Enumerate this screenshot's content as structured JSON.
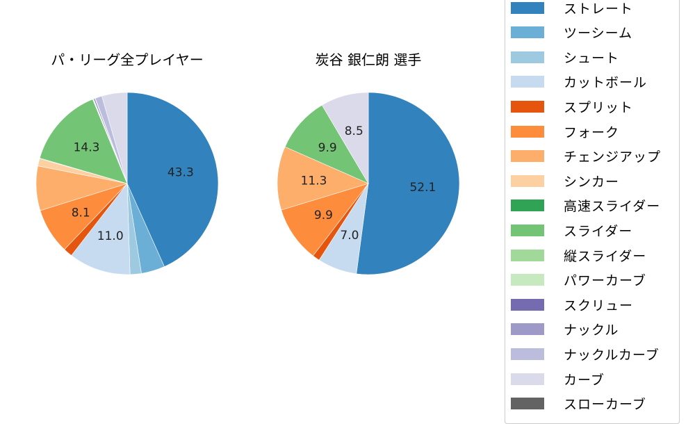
{
  "chart_data": [
    {
      "type": "pie",
      "title": "パ・リーグ全プレイヤー",
      "start_angle": "12 o'clock, clockwise",
      "categories": [
        "ストレート",
        "ツーシーム",
        "シュート",
        "カットボール",
        "スプリット",
        "フォーク",
        "チェンジアップ",
        "シンカー",
        "高速スライダー",
        "スライダー",
        "縦スライダー",
        "パワーカーブ",
        "スクリュー",
        "ナックル",
        "ナックルカーブ",
        "カーブ"
      ],
      "values": [
        43.3,
        4.2,
        2.0,
        11.0,
        1.6,
        8.1,
        7.9,
        1.3,
        0.1,
        14.3,
        0.1,
        0.1,
        0.2,
        0.1,
        1.2,
        4.5
      ],
      "labels_shown": [
        "43.3",
        "11.0",
        "8.1",
        "14.3"
      ]
    },
    {
      "type": "pie",
      "title": "炭谷 銀仁朗  選手",
      "start_angle": "12 o'clock, clockwise",
      "categories": [
        "ストレート",
        "カットボール",
        "スプリット",
        "フォーク",
        "チェンジアップ",
        "スライダー",
        "カーブ"
      ],
      "values": [
        52.1,
        7.0,
        1.3,
        9.9,
        11.3,
        9.9,
        8.5
      ],
      "labels_shown": [
        "52.1",
        "7.0",
        "9.9",
        "11.3",
        "9.9",
        "8.5"
      ]
    }
  ],
  "titles": {
    "left": "パ・リーグ全プレイヤー",
    "right": "炭谷 銀仁朗  選手"
  },
  "legend": [
    {
      "label": "ストレート",
      "color": "#3182bd"
    },
    {
      "label": "ツーシーム",
      "color": "#6baed6"
    },
    {
      "label": "シュート",
      "color": "#9ecae1"
    },
    {
      "label": "カットボール",
      "color": "#c6dbef"
    },
    {
      "label": "スプリット",
      "color": "#e6550d"
    },
    {
      "label": "フォーク",
      "color": "#fd8d3c"
    },
    {
      "label": "チェンジアップ",
      "color": "#fdae6b"
    },
    {
      "label": "シンカー",
      "color": "#fdd0a2"
    },
    {
      "label": "高速スライダー",
      "color": "#31a354"
    },
    {
      "label": "スライダー",
      "color": "#74c476"
    },
    {
      "label": "縦スライダー",
      "color": "#a1d99b"
    },
    {
      "label": "パワーカーブ",
      "color": "#c7e9c0"
    },
    {
      "label": "スクリュー",
      "color": "#756bb1"
    },
    {
      "label": "ナックル",
      "color": "#9e9ac8"
    },
    {
      "label": "ナックルカーブ",
      "color": "#bcbddc"
    },
    {
      "label": "カーブ",
      "color": "#dadaeb"
    },
    {
      "label": "スローカーブ",
      "color": "#636363"
    }
  ]
}
